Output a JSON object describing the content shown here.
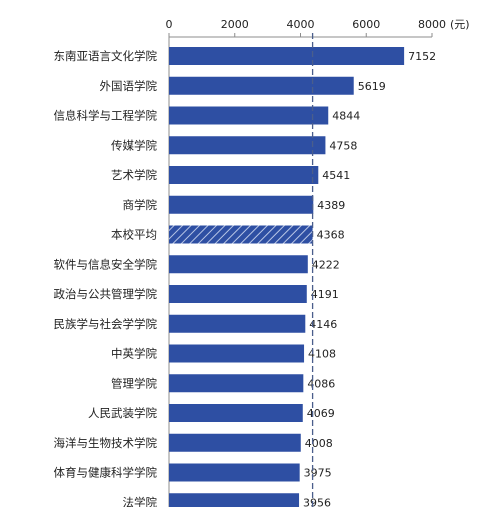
{
  "chart_data": {
    "type": "bar",
    "orientation": "horizontal",
    "categories": [
      "东南亚语言文化学院",
      "外国语学院",
      "信息科学与工程学院",
      "传媒学院",
      "艺术学院",
      "商学院",
      "本校平均",
      "软件与信息安全学院",
      "政治与公共管理学院",
      "民族学与社会学学院",
      "中英学院",
      "管理学院",
      "人民武装学院",
      "海洋与生物技术学院",
      "体育与健康科学学院",
      "法学院"
    ],
    "values": [
      7152,
      5619,
      4844,
      4758,
      4541,
      4389,
      4368,
      4222,
      4191,
      4146,
      4108,
      4086,
      4069,
      4008,
      3975,
      3956
    ],
    "highlight_category": "本校平均",
    "reference_line": 4368,
    "xlim": [
      0,
      8000
    ],
    "xticks": [
      "0",
      "2000",
      "4000",
      "6000",
      "8000"
    ],
    "unit": "(元)",
    "axis_position": "top",
    "grid": false,
    "bar_color": "#2E4FA3",
    "highlight_pattern": "diagonal-stripes",
    "reference_line_color": "#4A5E8C"
  }
}
